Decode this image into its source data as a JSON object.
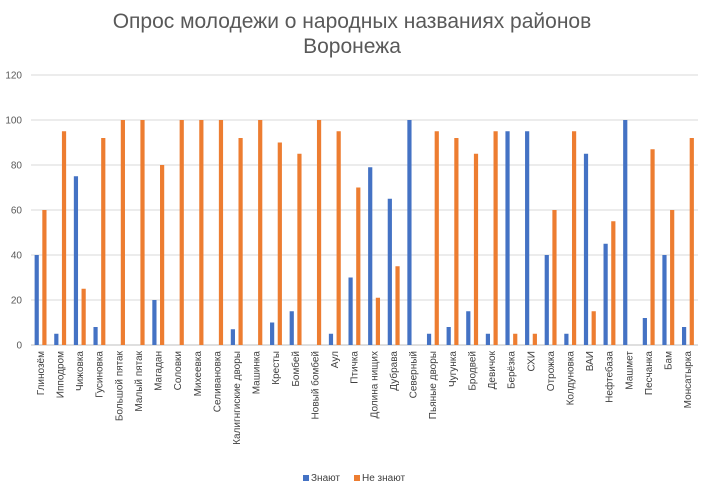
{
  "chart_data": {
    "type": "bar",
    "title": "Опрос молодежи о народных названиях районов Воронежа",
    "title_lines": [
      "Опрос молодежи о народных названиях районов",
      "Воронежа"
    ],
    "ylim": [
      0,
      120
    ],
    "yticks": [
      "0",
      "20",
      "40",
      "60",
      "80",
      "100",
      "120"
    ],
    "grid": true,
    "legend_position": "bottom",
    "categories": [
      "Глинозём",
      "Ипподром",
      "Чижовка",
      "Гусиновка",
      "Большой пятак",
      "Малый пятак",
      "Магадан",
      "Соловки",
      "Михеевка",
      "Селивановка",
      "Калигнгиские дворы",
      "Машинка",
      "Кресты",
      "Бомбей",
      "Новый бомбей",
      "Аул",
      "Птичка",
      "Долина нищих",
      "Дубрава",
      "Северный",
      "Пьяные дворы",
      "Чугунка",
      "Бродвей",
      "Девичок",
      "Берёзка",
      "СХИ",
      "Отрожка",
      "Колдуновка",
      "ВАИ",
      "Нефтебаза",
      "Машмет",
      "Песчанка",
      "Бам",
      "Монсатырка"
    ],
    "series": [
      {
        "name": "Знают",
        "color": "#4472C4",
        "values": [
          40,
          5,
          75,
          8,
          0,
          0,
          20,
          0,
          0,
          0,
          7,
          0,
          10,
          15,
          0,
          5,
          30,
          79,
          65,
          100,
          5,
          8,
          15,
          5,
          95,
          95,
          40,
          5,
          85,
          45,
          100,
          12,
          40,
          8
        ]
      },
      {
        "name": "Не знают",
        "color": "#ED7D31",
        "values": [
          60,
          95,
          25,
          92,
          100,
          100,
          80,
          100,
          100,
          100,
          92,
          100,
          90,
          85,
          100,
          95,
          70,
          21,
          35,
          0,
          95,
          92,
          85,
          95,
          5,
          5,
          60,
          95,
          15,
          55,
          0,
          87,
          60,
          92
        ]
      }
    ]
  }
}
